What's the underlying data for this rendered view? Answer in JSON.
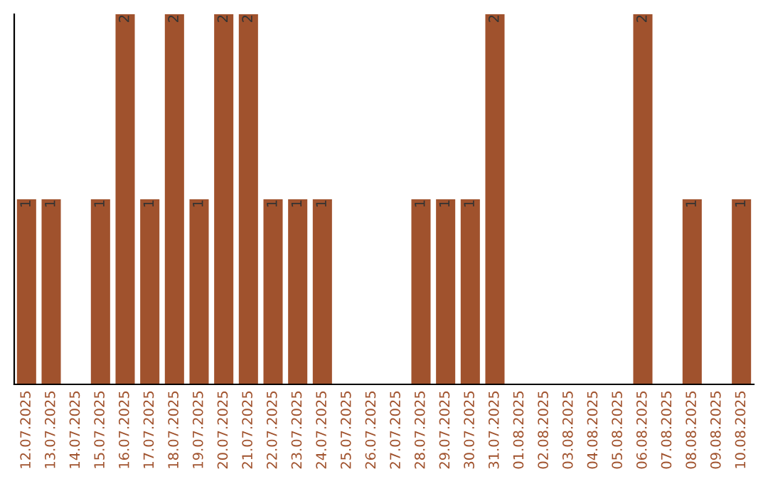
{
  "chart_data": {
    "type": "bar",
    "categories": [
      "12.07.2025",
      "13.07.2025",
      "14.07.2025",
      "15.07.2025",
      "16.07.2025",
      "17.07.2025",
      "18.07.2025",
      "19.07.2025",
      "20.07.2025",
      "21.07.2025",
      "22.07.2025",
      "23.07.2025",
      "24.07.2025",
      "25.07.2025",
      "26.07.2025",
      "27.07.2025",
      "28.07.2025",
      "29.07.2025",
      "30.07.2025",
      "31.07.2025",
      "01.08.2025",
      "02.08.2025",
      "03.08.2025",
      "04.08.2025",
      "05.08.2025",
      "06.08.2025",
      "07.08.2025",
      "08.08.2025",
      "09.08.2025",
      "10.08.2025"
    ],
    "values": [
      1,
      1,
      0,
      1,
      2,
      1,
      2,
      1,
      2,
      2,
      1,
      1,
      1,
      0,
      0,
      0,
      1,
      1,
      1,
      2,
      0,
      0,
      0,
      0,
      0,
      2,
      0,
      1,
      0,
      1
    ],
    "value_labels": [
      "1",
      "1",
      null,
      "1",
      "2",
      "1",
      "2",
      "1",
      "2",
      "2",
      "1",
      "1",
      "1",
      null,
      null,
      null,
      "1",
      "1",
      "1",
      "2",
      null,
      null,
      null,
      null,
      null,
      "2",
      null,
      "1",
      null,
      "1"
    ],
    "color": "#a0522d",
    "grid": false,
    "legend": false
  }
}
